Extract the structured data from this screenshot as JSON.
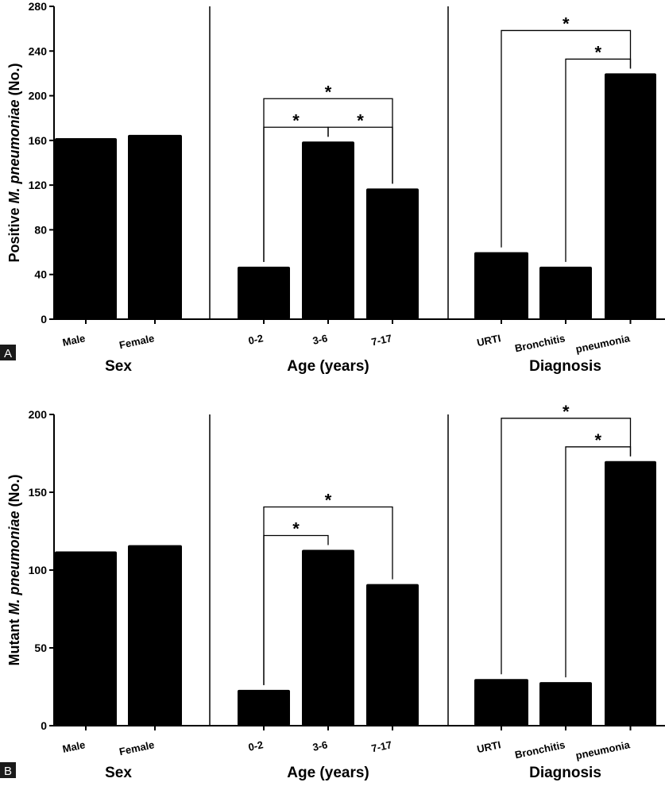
{
  "chart_data": [
    {
      "panel_label": "A",
      "type": "bar",
      "ylabel_prefix": "Positive ",
      "ylabel_italic": "M. pneumoniae",
      "ylabel_suffix": " (No.)",
      "ylim": [
        0,
        280
      ],
      "yticks": [
        0,
        40,
        80,
        120,
        160,
        200,
        240,
        280
      ],
      "groups": [
        {
          "name": "Sex",
          "categories": [
            "Male",
            "Female"
          ],
          "values": [
            162,
            165
          ]
        },
        {
          "name": "Age (years)",
          "categories": [
            "0-2",
            "3-6",
            "7-17"
          ],
          "values": [
            47,
            159,
            117
          ]
        },
        {
          "name": "Diagnosis",
          "categories": [
            "URTI",
            "Bronchitis",
            "pneumonia"
          ],
          "values": [
            60,
            47,
            220
          ]
        }
      ],
      "significance": [
        {
          "group": 1,
          "from": 0,
          "to": 1,
          "label": "*"
        },
        {
          "group": 1,
          "from": 1,
          "to": 2,
          "label": "*"
        },
        {
          "group": 1,
          "from": 0,
          "to": 2,
          "label": "*"
        },
        {
          "group": 2,
          "from": 1,
          "to": 2,
          "label": "*"
        },
        {
          "group": 2,
          "from": 0,
          "to": 2,
          "label": "*"
        }
      ]
    },
    {
      "panel_label": "B",
      "type": "bar",
      "ylabel_prefix": "Mutant  ",
      "ylabel_italic": "M. pneumoniae",
      "ylabel_suffix": " (No.)",
      "ylim": [
        0,
        200
      ],
      "yticks": [
        0,
        50,
        100,
        150,
        200
      ],
      "groups": [
        {
          "name": "Sex",
          "categories": [
            "Male",
            "Female"
          ],
          "values": [
            112,
            116
          ]
        },
        {
          "name": "Age (years)",
          "categories": [
            "0-2",
            "3-6",
            "7-17"
          ],
          "values": [
            23,
            113,
            91
          ]
        },
        {
          "name": "Diagnosis",
          "categories": [
            "URTI",
            "Bronchitis",
            "pneumonia"
          ],
          "values": [
            30,
            28,
            170
          ]
        }
      ],
      "significance": [
        {
          "group": 1,
          "from": 0,
          "to": 1,
          "label": "*"
        },
        {
          "group": 1,
          "from": 0,
          "to": 2,
          "label": "*"
        },
        {
          "group": 2,
          "from": 1,
          "to": 2,
          "label": "*"
        },
        {
          "group": 2,
          "from": 0,
          "to": 2,
          "label": "*"
        }
      ]
    }
  ]
}
